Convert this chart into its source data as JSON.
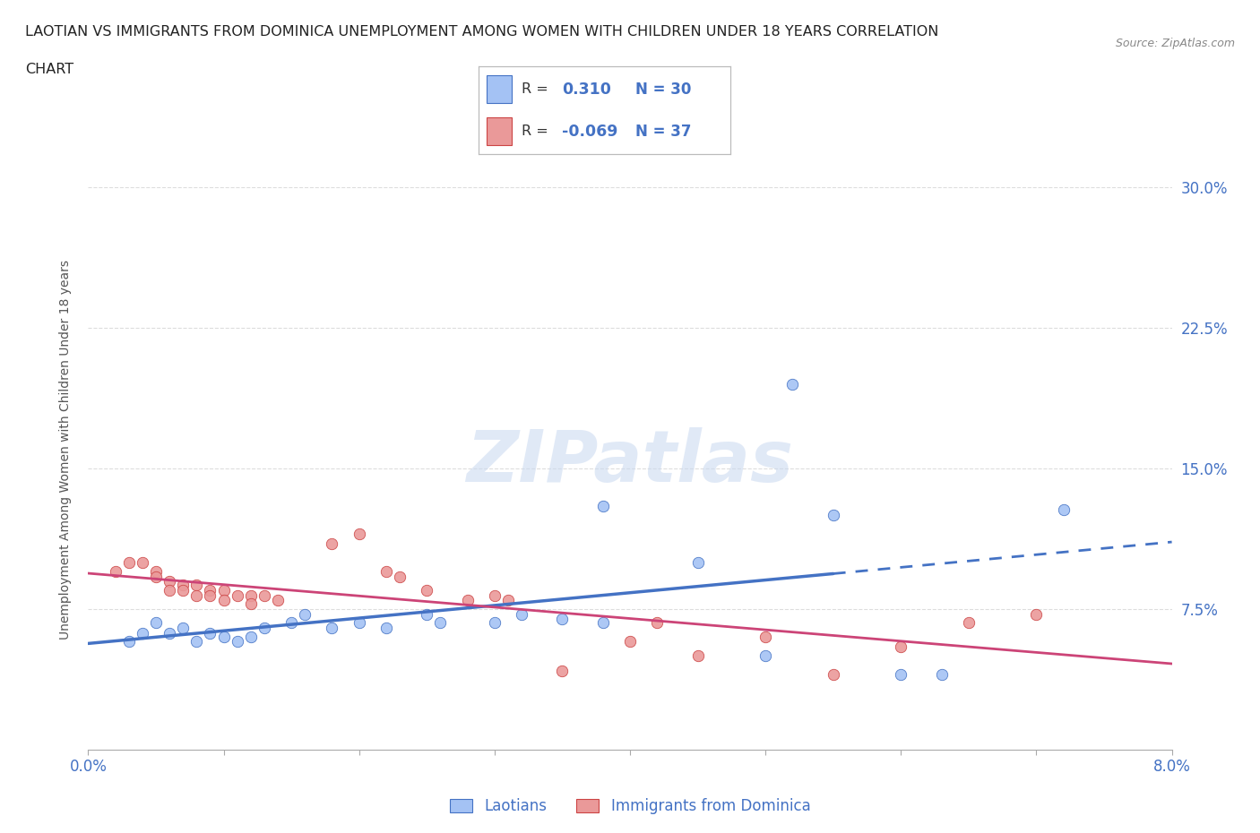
{
  "title_line1": "LAOTIAN VS IMMIGRANTS FROM DOMINICA UNEMPLOYMENT AMONG WOMEN WITH CHILDREN UNDER 18 YEARS CORRELATION",
  "title_line2": "CHART",
  "source": "Source: ZipAtlas.com",
  "ylabel": "Unemployment Among Women with Children Under 18 years",
  "xlim": [
    0.0,
    0.08
  ],
  "ylim": [
    0.0,
    0.32
  ],
  "ytick_labels": [
    "7.5%",
    "15.0%",
    "22.5%",
    "30.0%"
  ],
  "ytick_values": [
    0.075,
    0.15,
    0.225,
    0.3
  ],
  "blue_color": "#a4c2f4",
  "blue_edge": "#4472c4",
  "pink_color": "#ea9999",
  "pink_edge": "#cc4444",
  "trend_blue": "#4472c4",
  "trend_pink": "#cc4477",
  "R_blue": 0.31,
  "N_blue": 30,
  "R_pink": -0.069,
  "N_pink": 37,
  "blue_scatter": [
    [
      0.003,
      0.058
    ],
    [
      0.004,
      0.062
    ],
    [
      0.005,
      0.068
    ],
    [
      0.006,
      0.062
    ],
    [
      0.007,
      0.065
    ],
    [
      0.008,
      0.058
    ],
    [
      0.009,
      0.062
    ],
    [
      0.01,
      0.06
    ],
    [
      0.011,
      0.058
    ],
    [
      0.012,
      0.06
    ],
    [
      0.013,
      0.065
    ],
    [
      0.015,
      0.068
    ],
    [
      0.016,
      0.072
    ],
    [
      0.018,
      0.065
    ],
    [
      0.02,
      0.068
    ],
    [
      0.022,
      0.065
    ],
    [
      0.025,
      0.072
    ],
    [
      0.026,
      0.068
    ],
    [
      0.03,
      0.068
    ],
    [
      0.032,
      0.072
    ],
    [
      0.035,
      0.07
    ],
    [
      0.038,
      0.068
    ],
    [
      0.038,
      0.13
    ],
    [
      0.045,
      0.1
    ],
    [
      0.05,
      0.05
    ],
    [
      0.052,
      0.195
    ],
    [
      0.055,
      0.125
    ],
    [
      0.06,
      0.04
    ],
    [
      0.063,
      0.04
    ],
    [
      0.072,
      0.128
    ]
  ],
  "pink_scatter": [
    [
      0.002,
      0.095
    ],
    [
      0.003,
      0.1
    ],
    [
      0.004,
      0.1
    ],
    [
      0.005,
      0.095
    ],
    [
      0.005,
      0.092
    ],
    [
      0.006,
      0.09
    ],
    [
      0.006,
      0.085
    ],
    [
      0.007,
      0.088
    ],
    [
      0.007,
      0.085
    ],
    [
      0.008,
      0.088
    ],
    [
      0.008,
      0.082
    ],
    [
      0.009,
      0.085
    ],
    [
      0.009,
      0.082
    ],
    [
      0.01,
      0.085
    ],
    [
      0.01,
      0.08
    ],
    [
      0.011,
      0.082
    ],
    [
      0.012,
      0.082
    ],
    [
      0.012,
      0.078
    ],
    [
      0.013,
      0.082
    ],
    [
      0.014,
      0.08
    ],
    [
      0.018,
      0.11
    ],
    [
      0.02,
      0.115
    ],
    [
      0.022,
      0.095
    ],
    [
      0.023,
      0.092
    ],
    [
      0.025,
      0.085
    ],
    [
      0.028,
      0.08
    ],
    [
      0.03,
      0.082
    ],
    [
      0.031,
      0.08
    ],
    [
      0.035,
      0.042
    ],
    [
      0.04,
      0.058
    ],
    [
      0.042,
      0.068
    ],
    [
      0.045,
      0.05
    ],
    [
      0.05,
      0.06
    ],
    [
      0.055,
      0.04
    ],
    [
      0.06,
      0.055
    ],
    [
      0.065,
      0.068
    ],
    [
      0.07,
      0.072
    ]
  ],
  "background_color": "#ffffff",
  "grid_color": "#dddddd",
  "axis_color": "#4472c4",
  "watermark_text": "ZIPatlas",
  "legend_color": "#4472c4"
}
